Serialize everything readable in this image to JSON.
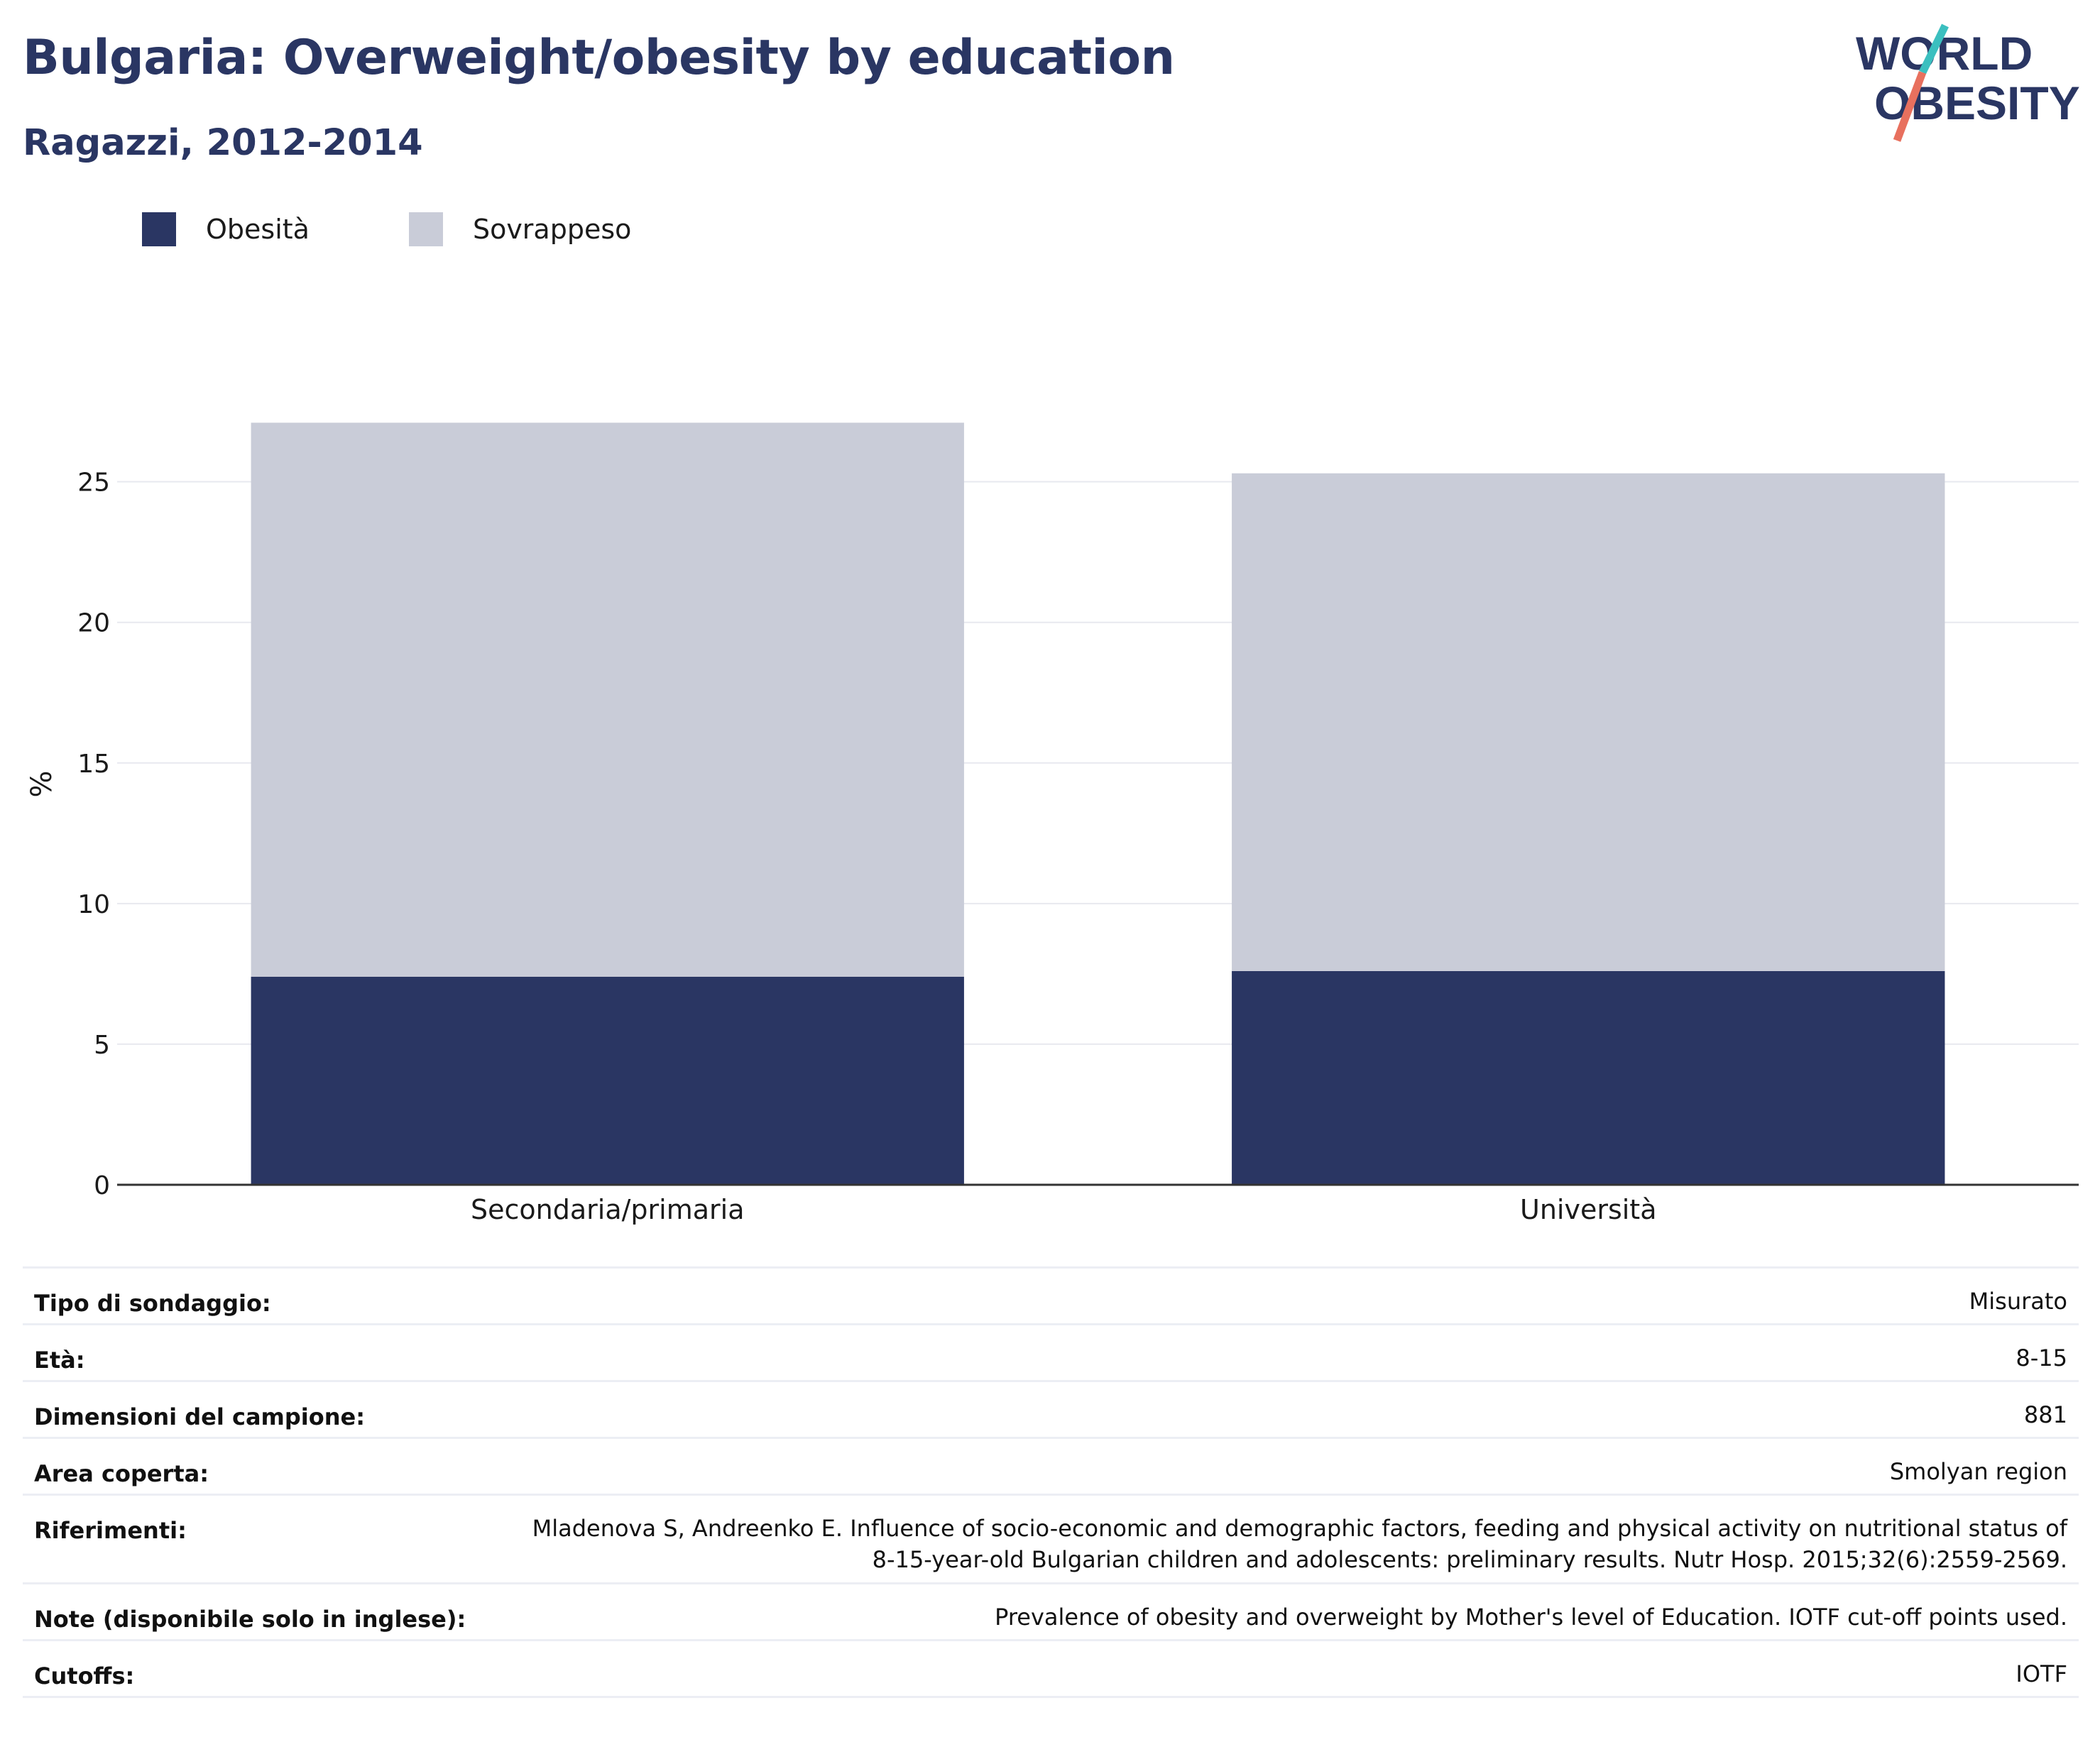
{
  "header": {
    "title": "Bulgaria: Overweight/obesity by education",
    "subtitle": "Ragazzi, 2012-2014"
  },
  "logo": {
    "text_line1": "WORLD",
    "text_line2": "OBESITY",
    "icon": "world-obesity-logo"
  },
  "colors": {
    "obesity": "#2a3663",
    "overweight": "#c9ccd8",
    "text": "#2a3663",
    "logo_teal": "#3bbfbf",
    "logo_coral": "#e8705e"
  },
  "legend": [
    {
      "label": "Obesità",
      "color": "#2a3663"
    },
    {
      "label": "Sovrappeso",
      "color": "#c9ccd8"
    }
  ],
  "chart_data": {
    "type": "bar",
    "stacked": true,
    "categories": [
      "Secondaria/primaria",
      "Università"
    ],
    "series": [
      {
        "name": "Obesità",
        "values": [
          7.4,
          7.6
        ]
      },
      {
        "name": "Sovrappeso",
        "values": [
          19.7,
          17.7
        ]
      }
    ],
    "ylabel": "%",
    "yticks": [
      0,
      5,
      10,
      15,
      20,
      25
    ],
    "ylim": [
      0,
      28.5
    ],
    "grid": true
  },
  "info": [
    {
      "label": "Tipo di sondaggio:",
      "value": "Misurato"
    },
    {
      "label": "Età:",
      "value": "8-15"
    },
    {
      "label": "Dimensioni del campione:",
      "value": "881"
    },
    {
      "label": "Area coperta:",
      "value": "Smolyan region"
    },
    {
      "label": "Riferimenti:",
      "value_line1": "Mladenova S, Andreenko E. Influence of socio-economic and demographic factors, feeding and physical activity on nutritional status of",
      "value_line2": "8-15-year-old Bulgarian children and adolescents: preliminary results. Nutr Hosp. 2015;32(6):2559-2569."
    },
    {
      "label": "Note (disponibile solo in inglese):",
      "value": "Prevalence of obesity and overweight by Mother's level of Education. IOTF cut-off points used."
    },
    {
      "label": "Cutoffs:",
      "value": "IOTF"
    }
  ]
}
